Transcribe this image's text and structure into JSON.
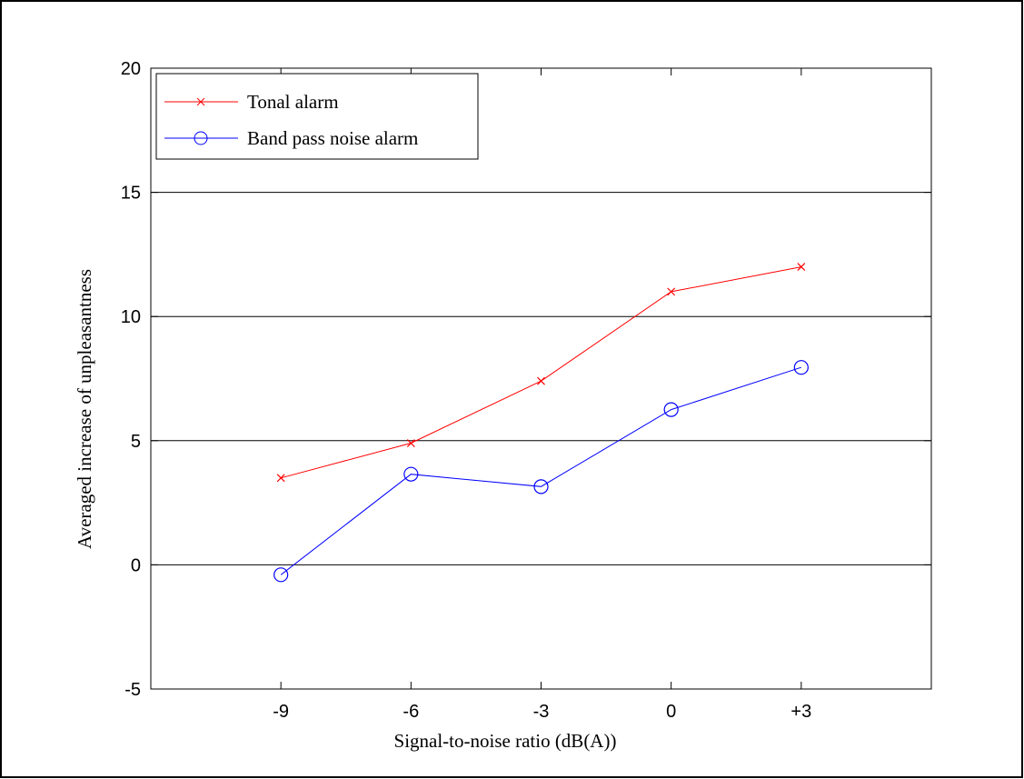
{
  "chart_data": {
    "type": "line",
    "title": "",
    "xlabel": "Signal-to-noise ratio (dB(A))",
    "ylabel": "Averaged increase of unpleasantness",
    "x_ticks": [
      {
        "value": -9,
        "label": "-9"
      },
      {
        "value": -6,
        "label": "-6"
      },
      {
        "value": -3,
        "label": "-3"
      },
      {
        "value": 0,
        "label": "0"
      },
      {
        "value": 3,
        "label": "+3"
      }
    ],
    "y_ticks": [
      {
        "value": -5,
        "label": "-5"
      },
      {
        "value": 0,
        "label": "0"
      },
      {
        "value": 5,
        "label": "5"
      },
      {
        "value": 10,
        "label": "10"
      },
      {
        "value": 15,
        "label": "15"
      },
      {
        "value": 20,
        "label": "20"
      }
    ],
    "xlim": [
      -12,
      6
    ],
    "ylim": [
      -5,
      20
    ],
    "grid": "horizontal",
    "legend_position": "top-left",
    "x": [
      -9,
      -6,
      -3,
      0,
      3
    ],
    "series": [
      {
        "name": "Tonal alarm",
        "color": "#ff0000",
        "marker": "x",
        "values": [
          3.5,
          4.9,
          7.4,
          11.0,
          12.0
        ]
      },
      {
        "name": "Band pass noise alarm",
        "color": "#0000ff",
        "marker": "circle",
        "values": [
          -0.4,
          3.65,
          3.15,
          6.25,
          7.95
        ]
      }
    ]
  }
}
